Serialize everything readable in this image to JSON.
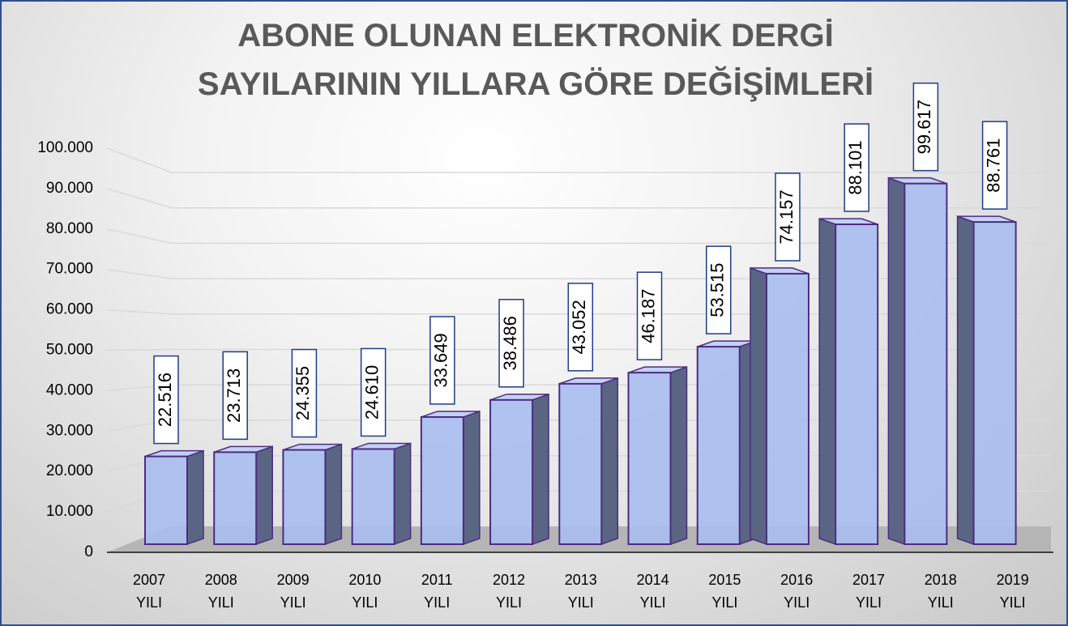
{
  "chart_data": {
    "type": "bar3d",
    "title": "ABONE OLUNAN ELEKTRONİK DERGİ SAYILARININ YILLARA GÖRE DEĞİŞİMLERİ",
    "categories": [
      "2007 YILI",
      "2008 YILI",
      "2009 YILI",
      "2010 YILI",
      "2011 YILI",
      "2012 YILI",
      "2013 YILI",
      "2014 YILI",
      "2015 YILI",
      "2016 YILI",
      "2017 YILI",
      "2018 YILI",
      "2019 YILI"
    ],
    "values": [
      22516,
      23713,
      24355,
      24610,
      33649,
      38486,
      43052,
      46187,
      53515,
      74157,
      88101,
      99617,
      88761
    ],
    "value_labels": [
      "22.516",
      "23.713",
      "24.355",
      "24.610",
      "33.649",
      "38.486",
      "43.052",
      "46.187",
      "53.515",
      "74.157",
      "88.101",
      "99.617",
      "88.761"
    ],
    "color": "#a9bdf0",
    "ylim": [
      0,
      100000
    ],
    "yticks": [
      0,
      {
        "value": 10000,
        "label": "10.000"
      },
      {
        "value": 20000,
        "label": "20.000"
      },
      {
        "value": 30000,
        "label": "30.000"
      },
      {
        "value": 40000,
        "label": "40.000"
      },
      {
        "value": 50000,
        "label": "50.000"
      },
      {
        "value": 60000,
        "label": "60.000"
      },
      {
        "value": 70000,
        "label": "70.000"
      },
      {
        "value": 80000,
        "label": "80.000"
      },
      {
        "value": 90000,
        "label": "90.000"
      },
      {
        "value": 100000,
        "label": "100.000"
      }
    ],
    "grid": true
  }
}
